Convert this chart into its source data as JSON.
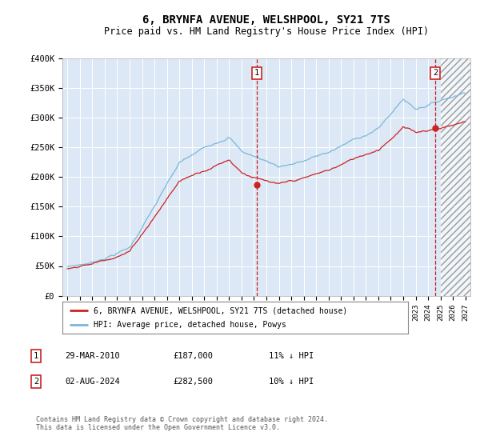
{
  "title": "6, BRYNFA AVENUE, WELSHPOOL, SY21 7TS",
  "subtitle": "Price paid vs. HM Land Registry's House Price Index (HPI)",
  "title_fontsize": 10,
  "subtitle_fontsize": 8.5,
  "background_color": "#ffffff",
  "plot_bg_color": "#dce8f5",
  "legend_label_red": "6, BRYNFA AVENUE, WELSHPOOL, SY21 7TS (detached house)",
  "legend_label_blue": "HPI: Average price, detached house, Powys",
  "footnote": "Contains HM Land Registry data © Crown copyright and database right 2024.\nThis data is licensed under the Open Government Licence v3.0.",
  "table_rows": [
    {
      "num": "1",
      "date": "29-MAR-2010",
      "price": "£187,000",
      "hpi": "11% ↓ HPI"
    },
    {
      "num": "2",
      "date": "02-AUG-2024",
      "price": "£282,500",
      "hpi": "10% ↓ HPI"
    }
  ],
  "sale1_year": 2010.24,
  "sale1_price": 187000,
  "sale2_year": 2024.58,
  "sale2_price": 282500,
  "ylim": [
    0,
    400000
  ],
  "yticks": [
    0,
    50000,
    100000,
    150000,
    200000,
    250000,
    300000,
    350000,
    400000
  ],
  "ytick_labels": [
    "£0",
    "£50K",
    "£100K",
    "£150K",
    "£200K",
    "£250K",
    "£300K",
    "£350K",
    "£400K"
  ],
  "hpi_color": "#7ab8d9",
  "price_color": "#cc2222",
  "marker_color": "#cc2222",
  "vline_color": "#cc2222",
  "grid_color": "#ffffff",
  "future_cutoff": 2025.0,
  "xmin": 1994.6,
  "xmax": 2027.4
}
